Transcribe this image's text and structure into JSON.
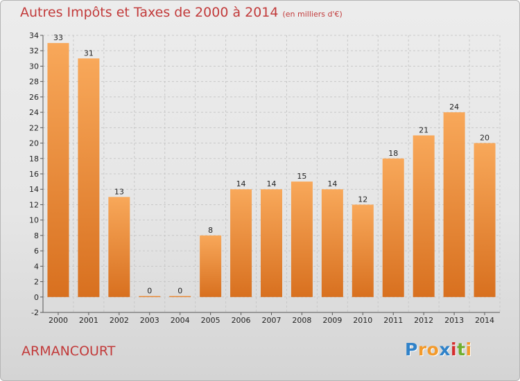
{
  "chart_data": {
    "type": "bar",
    "title": "Autres Impôts et Taxes de 2000 à 2014",
    "subtitle": "(en milliers d'€)",
    "categories": [
      "2000",
      "2001",
      "2002",
      "2003",
      "2004",
      "2005",
      "2006",
      "2007",
      "2008",
      "2009",
      "2010",
      "2011",
      "2012",
      "2013",
      "2014"
    ],
    "values": [
      33,
      31,
      13,
      0,
      0,
      8,
      14,
      14,
      15,
      14,
      12,
      18,
      21,
      24,
      20
    ],
    "ylim": [
      -2,
      34
    ],
    "yticks": [
      -2,
      0,
      2,
      4,
      6,
      8,
      10,
      12,
      14,
      16,
      18,
      20,
      22,
      24,
      26,
      28,
      30,
      32,
      34
    ],
    "xlabel": "",
    "ylabel": "",
    "grid": true,
    "bar_color": "#f0923a"
  },
  "commune": "ARMANCOURT",
  "logo": {
    "text": "Proxiti",
    "letters": [
      "P",
      "r",
      "o",
      "x",
      "i",
      "t",
      "i"
    ],
    "colors": [
      "#2f82c9",
      "#f39a2b",
      "#f39a2b",
      "#2f82c9",
      "#d42c2c",
      "#6fae2e",
      "#f39a2b"
    ]
  }
}
